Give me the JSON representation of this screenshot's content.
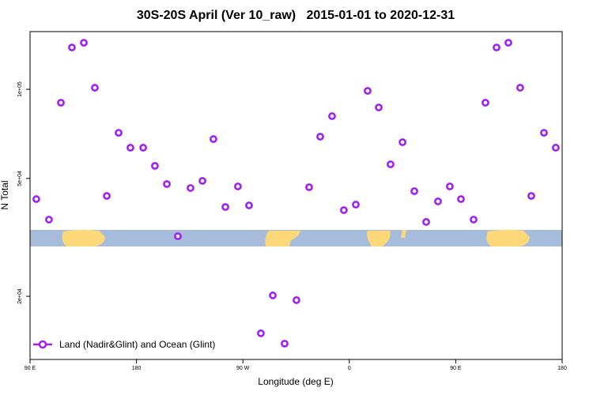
{
  "chart_data": {
    "type": "scatter",
    "title": "30S-20S April (Ver 10_raw)   2015-01-01 to 2020-12-31",
    "xlabel": "Longitude (deg E)",
    "ylabel": "N Total",
    "log_y": true,
    "legend": "lower left",
    "xlim": [
      90,
      540
    ],
    "ylim": [
      12240,
      156600
    ],
    "xticks": [
      {
        "value": 90,
        "label": "90 E"
      },
      180,
      {
        "value": 270,
        "label": "90 W"
      },
      {
        "value": 360,
        "label": "0"
      },
      {
        "value": 450,
        "label": "90 E"
      },
      {
        "value": 540,
        "label": "180"
      }
    ],
    "yticks": [
      {
        "value": 20000,
        "label": "2e+04"
      },
      {
        "value": 50000,
        "label": "5e+04"
      },
      {
        "value": 100000,
        "label": "1e+05"
      }
    ],
    "series": [
      {
        "name": "Land (Nadir&Glint) and Ocean (Glint)",
        "color": "#a020f0",
        "x": [
          95.3,
          106.0,
          116.1,
          125.4,
          135.5,
          144.8,
          154.9,
          164.9,
          174.9,
          185.7,
          195.6,
          205.7,
          215.0,
          225.7,
          235.8,
          245.1,
          255.2,
          265.8,
          275.2,
          285.2,
          295.3,
          305.3,
          315.3,
          326.0,
          335.4,
          345.4,
          355.4,
          365.5,
          375.5,
          384.9,
          394.9,
          405.0,
          415.0,
          425.0,
          435.0,
          445.0,
          454.4,
          465.1,
          475.1,
          484.5,
          494.5,
          504.5,
          513.9,
          524.6,
          534.6
        ],
        "values": [
          42580,
          36310,
          90100,
          138400,
          143600,
          101200,
          43650,
          71300,
          63500,
          63500,
          55120,
          47860,
          31900,
          46420,
          49060,
          67900,
          40050,
          46990,
          40550,
          15000,
          20140,
          13840,
          19410,
          46700,
          69180,
          81150,
          39080,
          40800,
          98800,
          86840,
          55800,
          66280,
          45290,
          35650,
          41820,
          46990,
          42580,
          36310,
          90100,
          138400,
          143600,
          101200,
          43650,
          71300,
          63500
        ]
      }
    ]
  }
}
